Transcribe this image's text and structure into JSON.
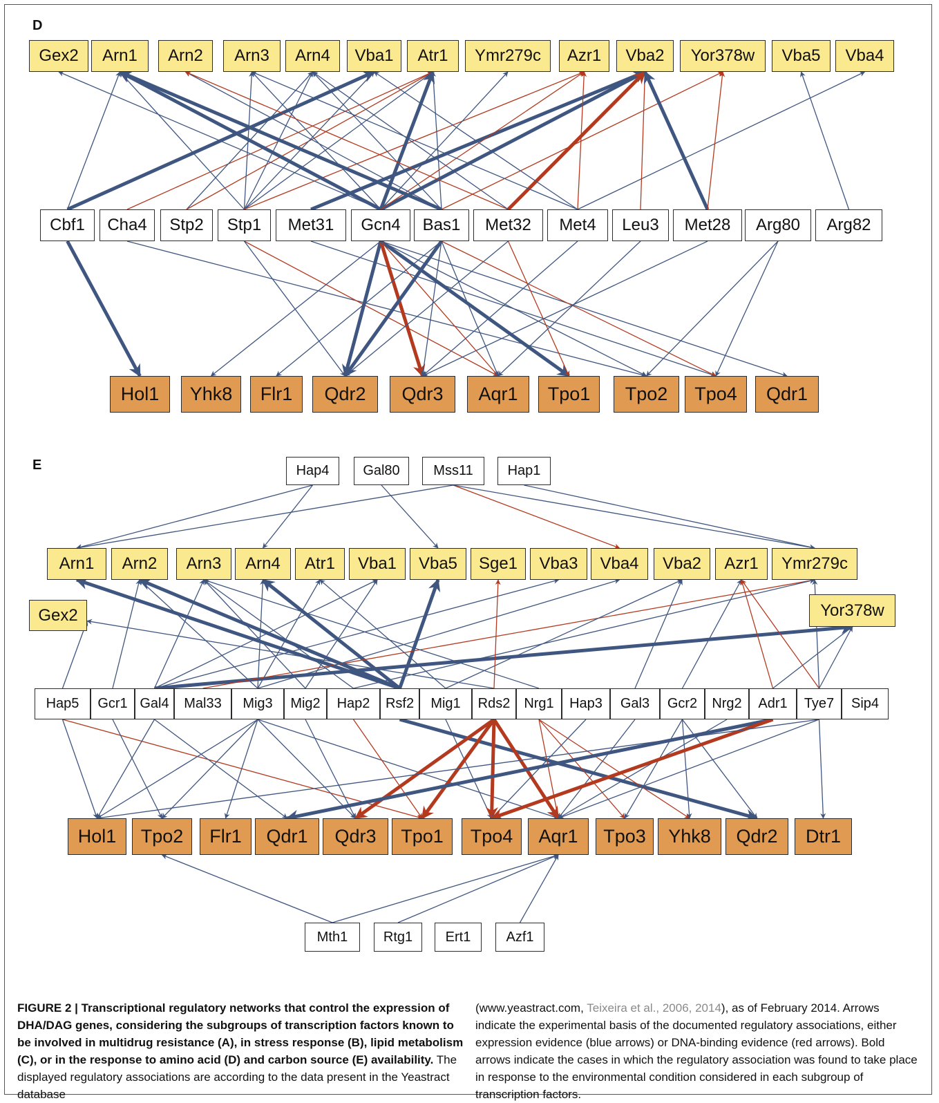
{
  "panels": {
    "D": {
      "label": "D",
      "targets_top": [
        "Gex2",
        "Arn1",
        "Arn2",
        "Arn3",
        "Arn4",
        "Vba1",
        "Atr1",
        "Ymr279c",
        "Azr1",
        "Vba2",
        "Yor378w",
        "Vba5",
        "Vba4"
      ],
      "regulators": [
        "Cbf1",
        "Cha4",
        "Stp2",
        "Stp1",
        "Met31",
        "Gcn4",
        "Bas1",
        "Met32",
        "Met4",
        "Leu3",
        "Met28",
        "Arg80",
        "Arg82"
      ],
      "targets_bottom": [
        "Hol1",
        "Yhk8",
        "Flr1",
        "Qdr2",
        "Qdr3",
        "Aqr1",
        "Tpo1",
        "Tpo2",
        "Tpo4",
        "Qdr1"
      ]
    },
    "E": {
      "label": "E",
      "upper_regulators": [
        "Hap4",
        "Gal80",
        "Mss11",
        "Hap1"
      ],
      "targets_top": [
        "Arn1",
        "Arn2",
        "Arn3",
        "Arn4",
        "Atr1",
        "Vba1",
        "Vba5",
        "Sge1",
        "Vba3",
        "Vba4",
        "Vba2",
        "Azr1",
        "Ymr279c"
      ],
      "target_left": "Gex2",
      "target_right": "Yor378w",
      "regulators": [
        "Hap5",
        "Gcr1",
        "Gal4",
        "Mal33",
        "Mig3",
        "Mig2",
        "Hap2",
        "Rsf2",
        "Mig1",
        "Rds2",
        "Nrg1",
        "Hap3",
        "Gal3",
        "Gcr2",
        "Nrg2",
        "Adr1",
        "Tye7",
        "Sip4"
      ],
      "targets_bottom": [
        "Hol1",
        "Tpo2",
        "Flr1",
        "Qdr1",
        "Qdr3",
        "Tpo1",
        "Tpo4",
        "Aqr1",
        "Tpo3",
        "Yhk8",
        "Qdr2",
        "Dtr1"
      ],
      "lower_regulators": [
        "Mth1",
        "Rtg1",
        "Ert1",
        "Azf1"
      ]
    }
  },
  "colors": {
    "expression_evidence": "#3f5680",
    "binding_evidence": "#b33a1f",
    "target_top_fill": "#fbe98f",
    "target_bottom_fill": "#e09a52"
  },
  "caption": {
    "title": "FIGURE 2 | Transcriptional regulatory networks that control the expression of DHA/DAG genes, considering the subgroups of transcription factors known to be involved in multidrug resistance (A), in stress response (B), lipid metabolism (C), or in the response to amino acid (D) and carbon source (E) availability.",
    "body_1": " The displayed regulatory associations are according to the data present in the Yeastract database",
    "body_2_pre": "(www.yeastract.com, ",
    "body_2_ref": "Teixeira et al., 2006, 2014",
    "body_2_post": "), as of February 2014. Arrows indicate the experimental basis of the documented regulatory associations, either expression evidence (blue arrows) or DNA-binding evidence (red arrows). Bold arrows indicate the cases in which the regulatory association was found to take place in response to the environmental condition considered in each subgroup of transcription factors."
  }
}
